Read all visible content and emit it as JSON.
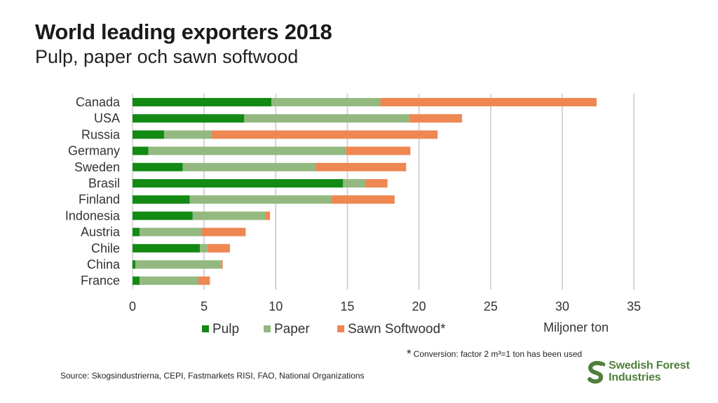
{
  "header": {
    "title": "World leading exporters 2018",
    "subtitle": "Pulp, paper och sawn softwood"
  },
  "footnote": {
    "star": "*",
    "text": "Conversion: factor 2 m³=1 ton has been used"
  },
  "source": "Source: Skogsindustrierna, CEPI, Fastmarkets RISI, FAO, National Organizations",
  "logo": {
    "line1": "Swedish Forest",
    "line2": "Industries",
    "color": "#4f7f3a"
  },
  "chart_data": {
    "type": "bar",
    "orientation": "horizontal",
    "stacked": true,
    "categories": [
      "Canada",
      "USA",
      "Russia",
      "Germany",
      "Sweden",
      "Brasil",
      "Finland",
      "Indonesia",
      "Austria",
      "Chile",
      "China",
      "France"
    ],
    "series": [
      {
        "name": "Pulp",
        "color": "#138a13",
        "values": [
          9.7,
          7.8,
          2.2,
          1.1,
          3.5,
          14.7,
          4.0,
          4.2,
          0.5,
          4.7,
          0.2,
          0.5
        ]
      },
      {
        "name": "Paper",
        "color": "#93b981",
        "values": [
          7.6,
          11.5,
          3.3,
          13.8,
          9.3,
          1.6,
          9.9,
          5.1,
          4.3,
          0.5,
          6.0,
          4.1
        ]
      },
      {
        "name": "Sawn Softwood*",
        "color": "#ee8752",
        "values": [
          15.1,
          3.7,
          15.8,
          4.5,
          6.3,
          1.5,
          4.4,
          0.3,
          3.1,
          1.6,
          0.1,
          0.8
        ]
      }
    ],
    "xlim": [
      0,
      35
    ],
    "xticks": [
      0,
      5,
      10,
      15,
      20,
      25,
      30,
      35
    ],
    "xlabel": "Miljoner ton",
    "grid": "vertical",
    "legend": "bottom"
  }
}
